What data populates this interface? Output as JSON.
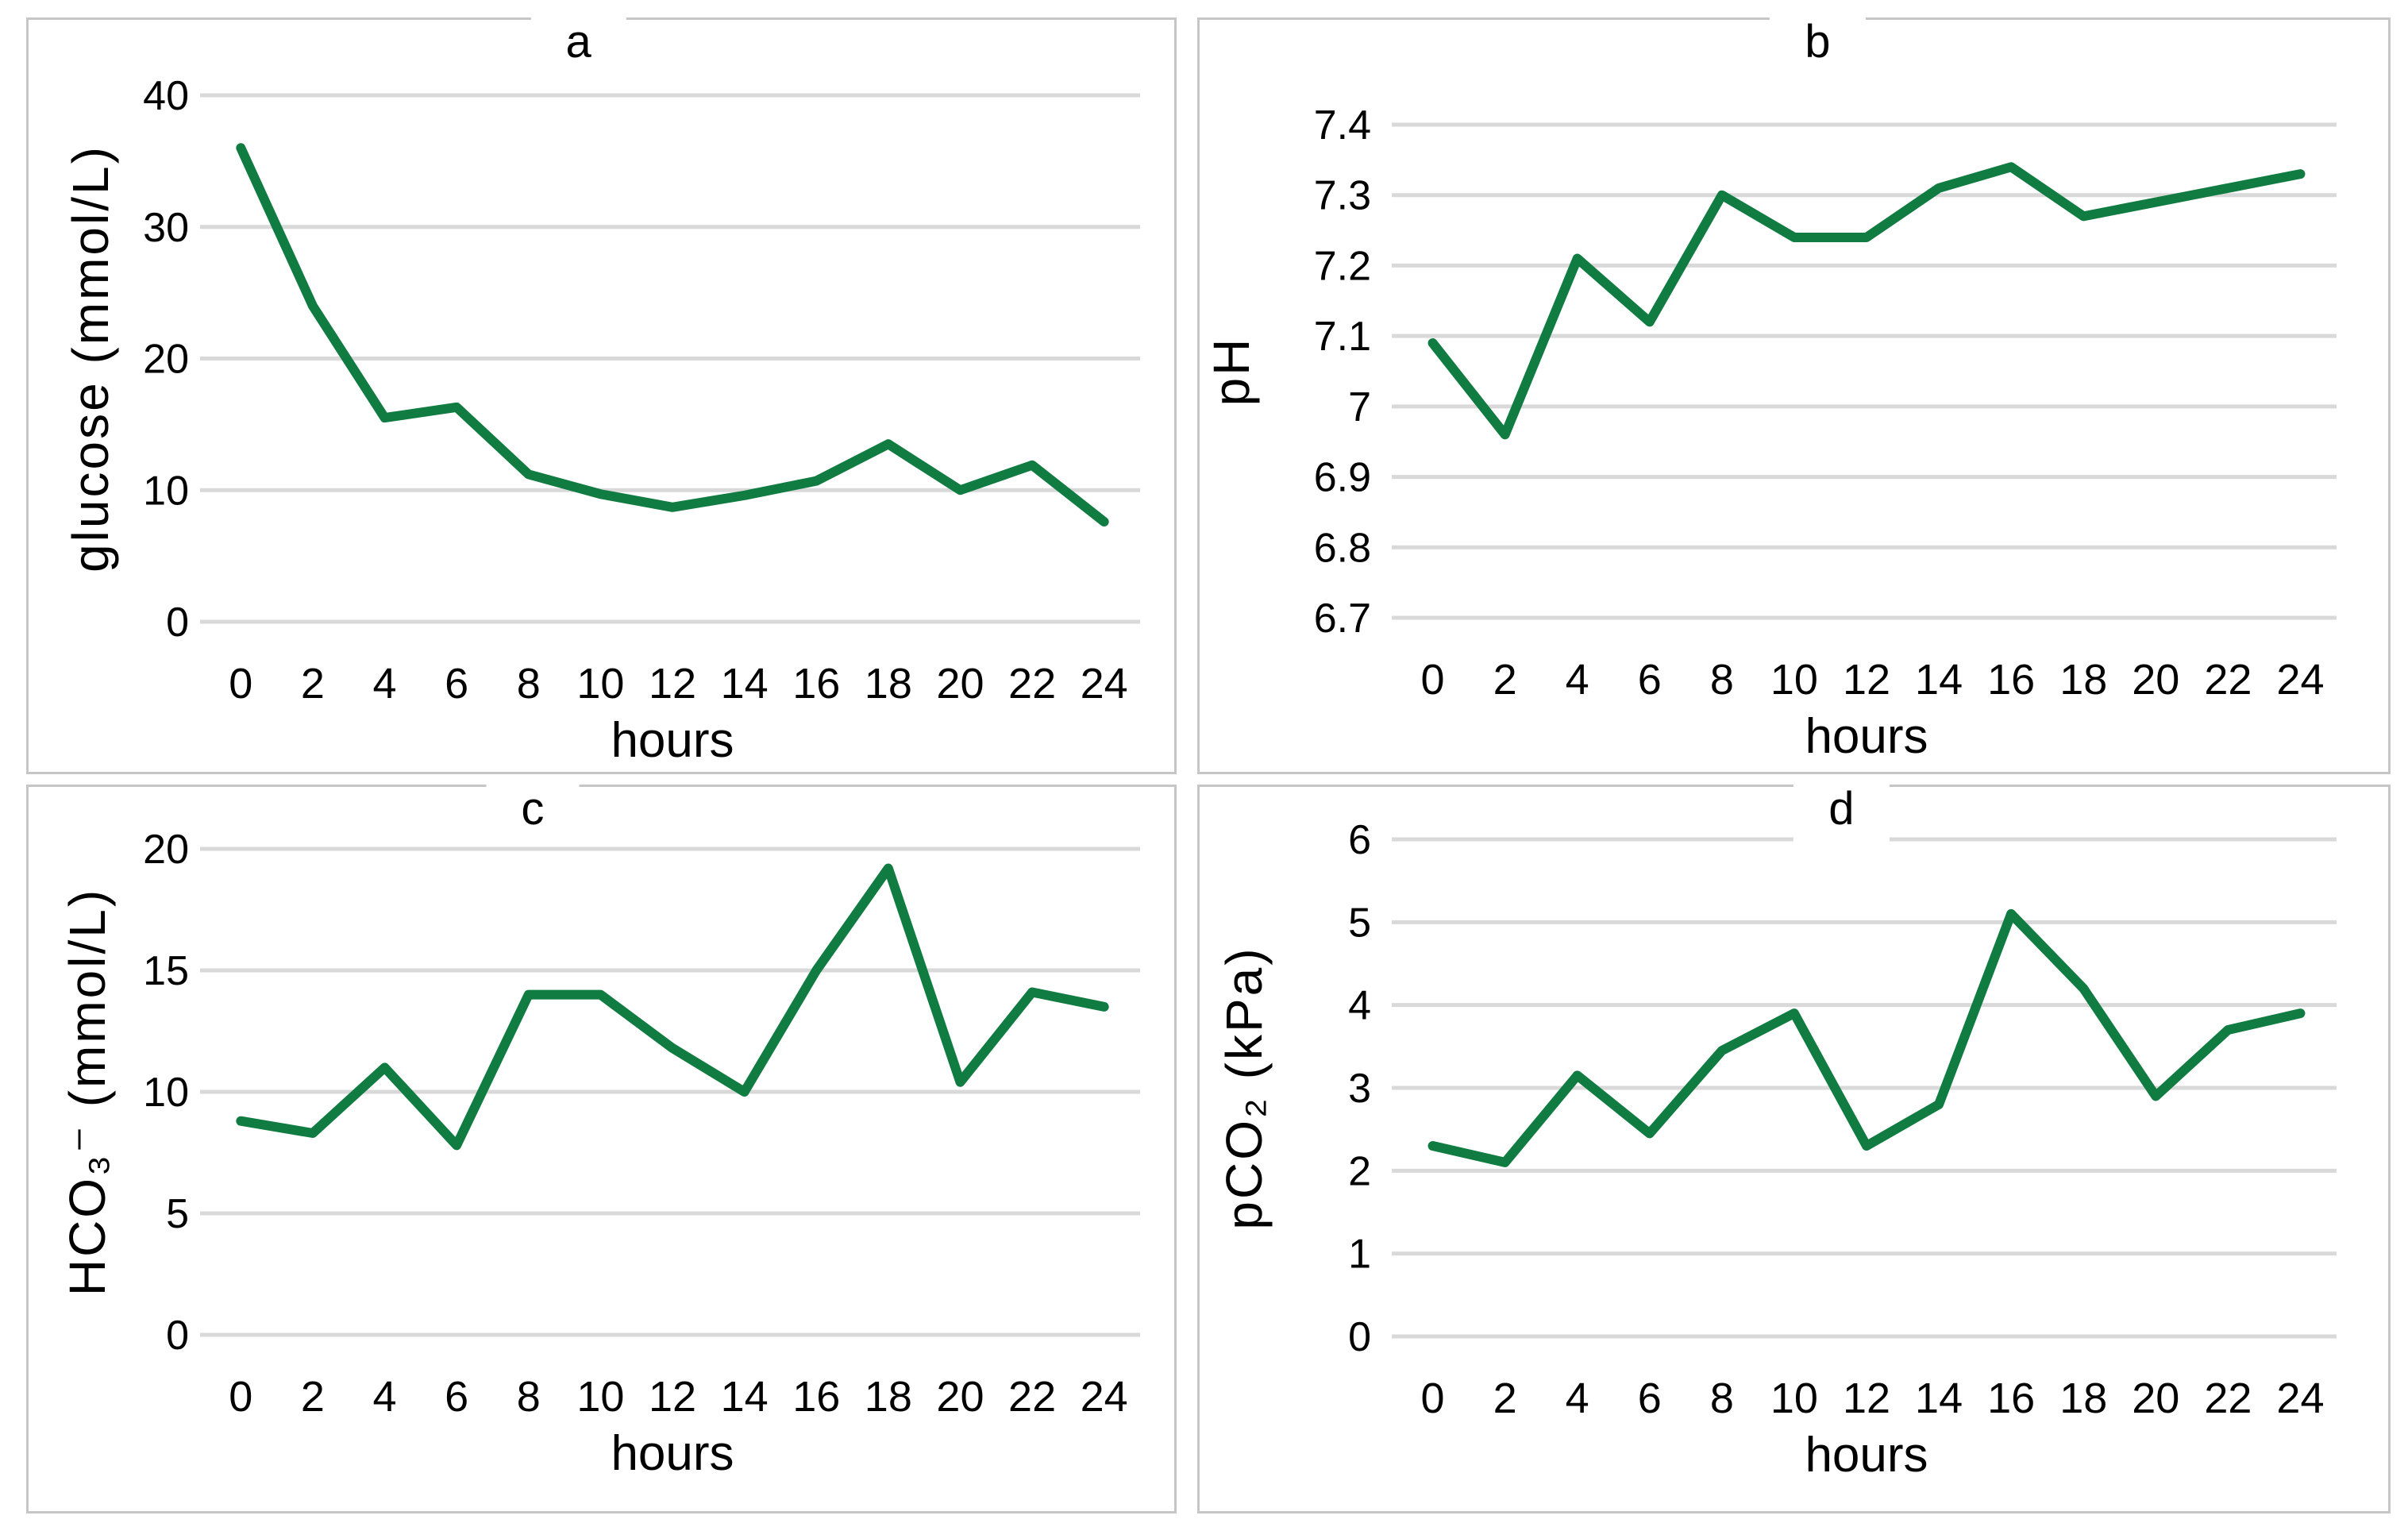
{
  "style": {
    "line_color": "#107C41",
    "gridline_color": "#D9D9D9",
    "panel_border_color": "#C6C6C6",
    "text_color": "#000000",
    "background": "#FFFFFF"
  },
  "chart_data": [
    {
      "id": "a",
      "type": "line",
      "title": "a",
      "xlabel": "hours",
      "ylabel": "glucose (mmol/L)",
      "x": [
        0,
        2,
        4,
        6,
        8,
        10,
        12,
        14,
        16,
        18,
        20,
        22,
        24
      ],
      "xtick_labels": [
        "0",
        "2",
        "4",
        "6",
        "8",
        "10",
        "12",
        "14",
        "16",
        "18",
        "20",
        "22",
        "24"
      ],
      "values": [
        36,
        24,
        15.5,
        16.3,
        11.2,
        9.7,
        8.7,
        9.6,
        10.7,
        13.5,
        10,
        11.9,
        7.6
      ],
      "ylim": [
        0,
        40
      ],
      "yticks": [
        0,
        10,
        20,
        30,
        40
      ],
      "ytick_labels": [
        "0",
        "10",
        "20",
        "30",
        "40"
      ],
      "grid": "horizontal",
      "legend": "none"
    },
    {
      "id": "b",
      "type": "line",
      "title": "b",
      "xlabel": "hours",
      "ylabel": "pH",
      "x": [
        0,
        2,
        4,
        6,
        8,
        10,
        12,
        14,
        16,
        18,
        20,
        22,
        24
      ],
      "xtick_labels": [
        "0",
        "2",
        "4",
        "6",
        "8",
        "10",
        "12",
        "14",
        "16",
        "18",
        "20",
        "22",
        "24"
      ],
      "values": [
        7.09,
        6.96,
        7.21,
        7.12,
        7.3,
        7.24,
        7.24,
        7.31,
        7.34,
        7.27,
        7.29,
        7.31,
        7.33
      ],
      "ylim": [
        6.7,
        7.4
      ],
      "yticks": [
        6.7,
        6.8,
        6.9,
        7.0,
        7.1,
        7.2,
        7.3,
        7.4
      ],
      "ytick_labels": [
        "6.7",
        "6.8",
        "6.9",
        "7",
        "7.1",
        "7.2",
        "7.3",
        "7.4"
      ],
      "grid": "horizontal",
      "legend": "none"
    },
    {
      "id": "c",
      "type": "line",
      "title": "c",
      "xlabel": "hours",
      "ylabel": "HCO₃⁻ (mmol/L)",
      "x": [
        0,
        2,
        4,
        6,
        8,
        10,
        12,
        14,
        16,
        18,
        20,
        22,
        24
      ],
      "xtick_labels": [
        "0",
        "2",
        "4",
        "6",
        "8",
        "10",
        "12",
        "14",
        "16",
        "18",
        "20",
        "22",
        "24"
      ],
      "values": [
        8.8,
        8.3,
        11,
        7.8,
        14,
        14,
        11.8,
        10,
        15,
        19.2,
        10.4,
        14.1,
        13.5
      ],
      "ylim": [
        0,
        20
      ],
      "yticks": [
        0,
        5,
        10,
        15,
        20
      ],
      "ytick_labels": [
        "0",
        "5",
        "10",
        "15",
        "20"
      ],
      "grid": "horizontal",
      "legend": "none"
    },
    {
      "id": "d",
      "type": "line",
      "title": "d",
      "xlabel": "hours",
      "ylabel": "pCO₂ (kPa)",
      "x": [
        0,
        2,
        4,
        6,
        8,
        10,
        12,
        14,
        16,
        18,
        20,
        22,
        24
      ],
      "xtick_labels": [
        "0",
        "2",
        "4",
        "6",
        "8",
        "10",
        "12",
        "14",
        "16",
        "18",
        "20",
        "22",
        "24"
      ],
      "values": [
        2.3,
        2.1,
        3.15,
        2.45,
        3.45,
        3.9,
        2.3,
        2.8,
        5.1,
        4.2,
        2.9,
        3.7,
        3.9
      ],
      "ylim": [
        0,
        6
      ],
      "yticks": [
        0,
        1,
        2,
        3,
        4,
        5,
        6
      ],
      "ytick_labels": [
        "0",
        "1",
        "2",
        "3",
        "4",
        "5",
        "6"
      ],
      "grid": "horizontal",
      "legend": "none"
    }
  ]
}
